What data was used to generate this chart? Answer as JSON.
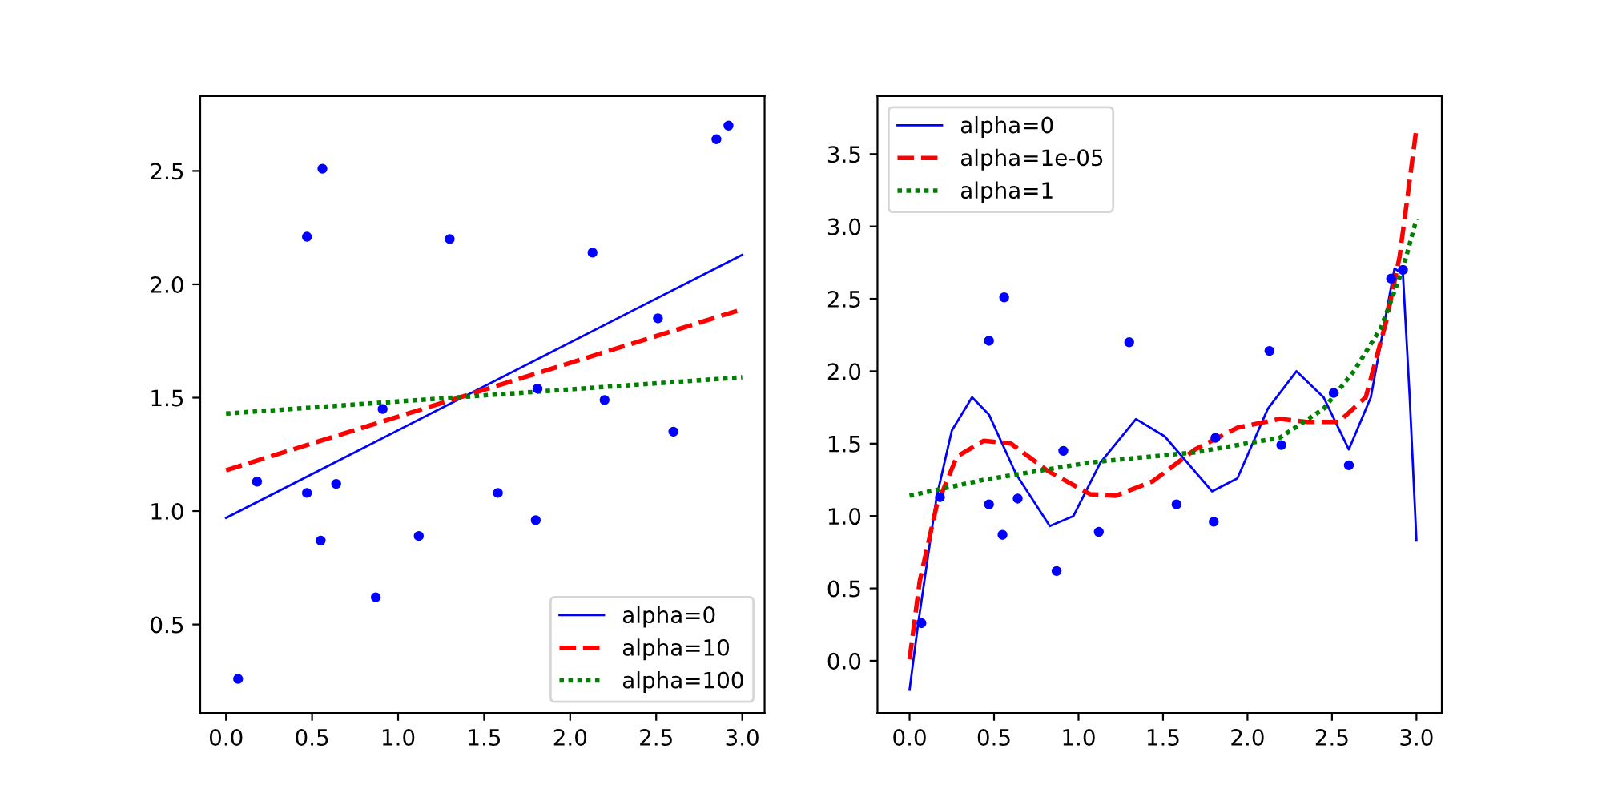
{
  "chart_data": [
    {
      "type": "scatter",
      "xlim": [
        -0.15,
        3.13
      ],
      "ylim": [
        0.11,
        2.83
      ],
      "xticks": [
        {
          "value": 0,
          "label": "0.0"
        },
        {
          "value": 0.5,
          "label": "0.5"
        },
        {
          "value": 1,
          "label": "1.0"
        },
        {
          "value": 1.5,
          "label": "1.5"
        },
        {
          "value": 2,
          "label": "2.0"
        },
        {
          "value": 2.5,
          "label": "2.5"
        },
        {
          "value": 3,
          "label": "3.0"
        }
      ],
      "yticks": [
        {
          "value": 0.5,
          "label": "0.5"
        },
        {
          "value": 1,
          "label": "1.0"
        },
        {
          "value": 1.5,
          "label": "1.5"
        },
        {
          "value": 2,
          "label": "2.0"
        },
        {
          "value": 2.5,
          "label": "2.5"
        }
      ],
      "legend": "bottom right",
      "grid": false,
      "series": [
        {
          "marker": "circle",
          "color": "#0000ff",
          "x": [
            0.07,
            0.18,
            0.47,
            0.47,
            0.56,
            0.55,
            0.64,
            0.87,
            0.91,
            1.12,
            1.3,
            1.58,
            1.8,
            1.81,
            2.13,
            2.2,
            2.51,
            2.6,
            2.85,
            2.92
          ],
          "values": [
            0.26,
            1.13,
            2.21,
            1.08,
            2.51,
            0.87,
            1.12,
            0.62,
            1.45,
            0.89,
            2.2,
            1.08,
            0.96,
            1.54,
            2.14,
            1.49,
            1.85,
            1.35,
            2.64,
            2.7
          ]
        },
        {
          "type": "line",
          "name": "alpha=0",
          "line_style": "solid",
          "color": "#0000ff",
          "x": [
            0,
            3
          ],
          "values": [
            0.97,
            2.13
          ]
        },
        {
          "type": "line",
          "name": "alpha=10",
          "line_style": "dashed",
          "color": "#ff0000",
          "x": [
            0,
            3
          ],
          "values": [
            1.18,
            1.89
          ]
        },
        {
          "type": "line",
          "name": "alpha=100",
          "line_style": "dotted",
          "color": "#008000",
          "x": [
            0,
            3
          ],
          "values": [
            1.43,
            1.59
          ]
        }
      ]
    },
    {
      "type": "scatter",
      "xlim": [
        -0.19,
        3.15
      ],
      "ylim": [
        -0.36,
        3.9
      ],
      "xticks": [
        {
          "value": 0,
          "label": "0.0"
        },
        {
          "value": 0.5,
          "label": "0.5"
        },
        {
          "value": 1,
          "label": "1.0"
        },
        {
          "value": 1.5,
          "label": "1.5"
        },
        {
          "value": 2,
          "label": "2.0"
        },
        {
          "value": 2.5,
          "label": "2.5"
        },
        {
          "value": 3,
          "label": "3.0"
        }
      ],
      "yticks": [
        {
          "value": 0,
          "label": "0.0"
        },
        {
          "value": 0.5,
          "label": "0.5"
        },
        {
          "value": 1,
          "label": "1.0"
        },
        {
          "value": 1.5,
          "label": "1.5"
        },
        {
          "value": 2,
          "label": "2.0"
        },
        {
          "value": 2.5,
          "label": "2.5"
        },
        {
          "value": 3,
          "label": "3.0"
        },
        {
          "value": 3.5,
          "label": "3.5"
        }
      ],
      "legend": "top left",
      "grid": false,
      "series": [
        {
          "marker": "circle",
          "color": "#0000ff",
          "x": [
            0.07,
            0.18,
            0.47,
            0.47,
            0.56,
            0.55,
            0.64,
            0.87,
            0.91,
            1.12,
            1.3,
            1.58,
            1.8,
            1.81,
            2.13,
            2.2,
            2.51,
            2.6,
            2.85,
            2.92
          ],
          "values": [
            0.26,
            1.13,
            2.21,
            1.08,
            2.51,
            0.87,
            1.12,
            0.62,
            1.45,
            0.89,
            2.2,
            1.08,
            0.96,
            1.54,
            2.14,
            1.49,
            1.85,
            1.35,
            2.64,
            2.7
          ]
        },
        {
          "type": "line",
          "name": "alpha=0",
          "line_style": "solid",
          "color": "#0000ff",
          "x": [
            0.0,
            0.05,
            0.16,
            0.25,
            0.37,
            0.47,
            0.63,
            0.83,
            0.97,
            1.13,
            1.34,
            1.51,
            1.79,
            1.94,
            2.12,
            2.29,
            2.45,
            2.6,
            2.73,
            2.87,
            2.92,
            2.96,
            3.0
          ],
          "values": [
            -0.2,
            0.25,
            1.13,
            1.59,
            1.82,
            1.7,
            1.29,
            0.93,
            1.0,
            1.37,
            1.67,
            1.55,
            1.17,
            1.26,
            1.74,
            2.0,
            1.82,
            1.46,
            1.82,
            2.71,
            2.67,
            1.82,
            0.83
          ]
        },
        {
          "type": "line",
          "name": "alpha=1e-05",
          "line_style": "dashed",
          "color": "#ff0000",
          "x": [
            0.0,
            0.06,
            0.16,
            0.28,
            0.44,
            0.6,
            0.82,
            1.07,
            1.22,
            1.44,
            1.69,
            1.94,
            2.19,
            2.35,
            2.54,
            2.7,
            2.82,
            2.9,
            2.95,
            3.0
          ],
          "values": [
            0.01,
            0.55,
            1.07,
            1.41,
            1.52,
            1.5,
            1.31,
            1.15,
            1.14,
            1.24,
            1.46,
            1.61,
            1.67,
            1.65,
            1.65,
            1.82,
            2.34,
            2.79,
            3.23,
            3.68
          ]
        },
        {
          "type": "line",
          "name": "alpha=1",
          "line_style": "dotted",
          "color": "#008000",
          "x": [
            0.0,
            0.44,
            1.07,
            1.69,
            2.19,
            2.45,
            2.63,
            2.79,
            2.92,
            3.0
          ],
          "values": [
            1.14,
            1.25,
            1.37,
            1.44,
            1.54,
            1.74,
            2.0,
            2.3,
            2.71,
            3.05
          ]
        }
      ]
    }
  ]
}
